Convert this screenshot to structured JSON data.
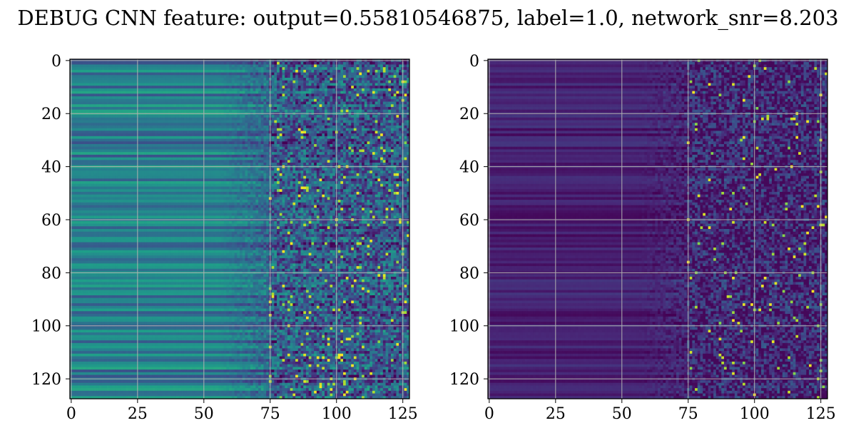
{
  "title": "DEBUG CNN feature: output=0.55810546875, label=1.0, network_snr=8.203",
  "colors": {
    "viridis": [
      "#440154",
      "#482878",
      "#3e4989",
      "#31688e",
      "#26828e",
      "#1f9e89",
      "#35b779",
      "#6ece58",
      "#b5de2b",
      "#fde725"
    ],
    "grid": "#b0b0b0",
    "frame": "#000000"
  },
  "chart_data": [
    {
      "type": "heatmap",
      "colormap": "viridis",
      "rows": 128,
      "cols": 128,
      "xlim": [
        0,
        127
      ],
      "ylim": [
        127,
        0
      ],
      "x_ticks": [
        "0",
        "25",
        "50",
        "75",
        "100",
        "125"
      ],
      "y_ticks": [
        "0",
        "20",
        "40",
        "60",
        "80",
        "100",
        "120"
      ],
      "grid": true,
      "xlabel": "",
      "ylabel": "",
      "pattern": "horizontal row bands (teal/green) on the left (cols 0-70), speckled noise with bright yellow spots on the right (cols 75-127); overall mid-range values"
    },
    {
      "type": "heatmap",
      "colormap": "viridis",
      "rows": 128,
      "cols": 128,
      "xlim": [
        0,
        127
      ],
      "ylim": [
        127,
        0
      ],
      "x_ticks": [
        "0",
        "25",
        "50",
        "75",
        "100",
        "125"
      ],
      "y_ticks": [
        "0",
        "20",
        "40",
        "60",
        "80",
        "100",
        "120"
      ],
      "grid": true,
      "xlabel": "",
      "ylabel": "",
      "pattern": "mostly dark purple horizontal bands on the left (cols 0-70), speckled blue/teal/green noise on the right (cols 75-127); overall low values"
    }
  ]
}
